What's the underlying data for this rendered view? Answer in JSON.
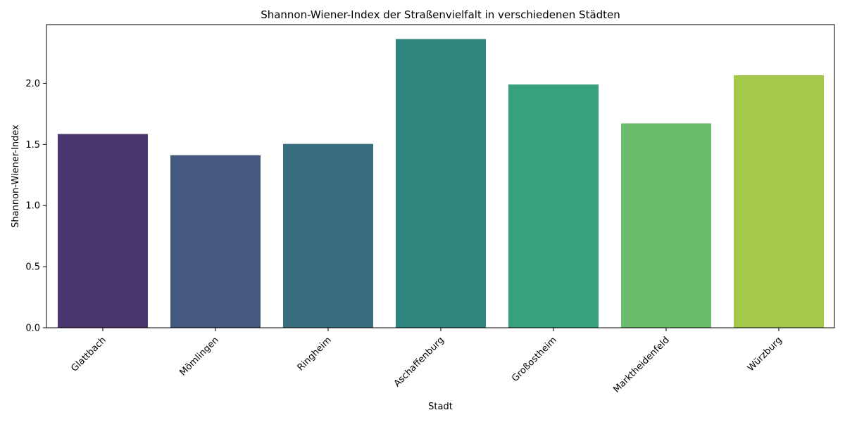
{
  "chart_data": {
    "type": "bar",
    "title": "Shannon-Wiener-Index der Straßenvielfalt in verschiedenen Städten",
    "xlabel": "Stadt",
    "ylabel": "Shannon-Wiener-Index",
    "categories": [
      "Glattbach",
      "Mömlingen",
      "Ringheim",
      "Aschaffenburg",
      "Großostheim",
      "Marktheidenfeld",
      "Würzburg"
    ],
    "values": [
      1.585,
      1.412,
      1.504,
      2.362,
      1.99,
      1.672,
      2.066
    ],
    "colors": [
      "#4b3570",
      "#455980",
      "#396d80",
      "#2e857e",
      "#37a07c",
      "#6bbd6c",
      "#a3c84a"
    ],
    "ylim": [
      0,
      2.48
    ],
    "yticks": [
      0.0,
      0.5,
      1.0,
      1.5,
      2.0
    ],
    "ytick_labels": [
      "0.0",
      "0.5",
      "1.0",
      "1.5",
      "2.0"
    ],
    "grid": false,
    "legend": "none"
  }
}
